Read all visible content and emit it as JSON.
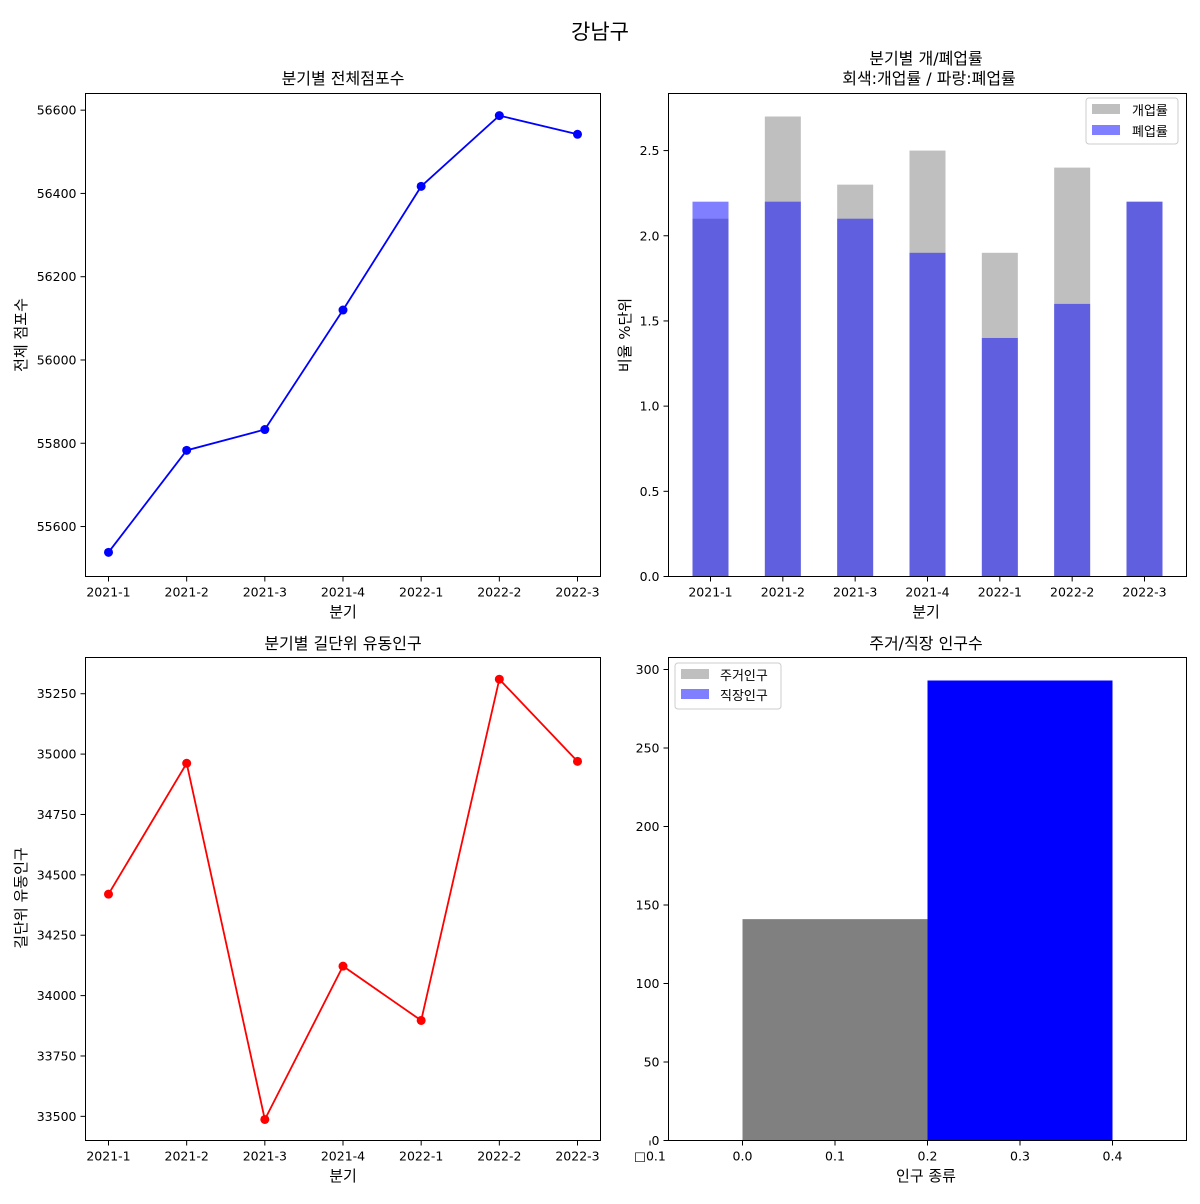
{
  "suptitle": "강남구",
  "chart_data": [
    {
      "type": "line",
      "title": "분기별 전체점포수",
      "xlabel": "분기",
      "ylabel": "전체 점포수",
      "categories": [
        "2021-1",
        "2021-2",
        "2021-3",
        "2021-4",
        "2022-1",
        "2022-2",
        "2022-3"
      ],
      "values": [
        55538,
        55783,
        55833,
        56120,
        56417,
        56587,
        56542
      ],
      "ylim": [
        55480,
        56640
      ],
      "yticks": [
        55600,
        55800,
        56000,
        56200,
        56400,
        56600
      ],
      "color": "#0000ff"
    },
    {
      "type": "bar",
      "title_line1": "분기별 개/폐업률",
      "title_line2": "회색:개업률 / 파랑:폐업률",
      "xlabel": "분기",
      "ylabel": "비율 %단위",
      "categories": [
        "2021-1",
        "2021-2",
        "2021-3",
        "2021-4",
        "2022-1",
        "2022-2",
        "2022-3"
      ],
      "series": [
        {
          "name": "개업률",
          "values": [
            2.1,
            2.7,
            2.3,
            2.5,
            1.9,
            2.4,
            2.2
          ],
          "color": "#808080",
          "alpha": 0.5
        },
        {
          "name": "폐업률",
          "values": [
            2.2,
            2.2,
            2.1,
            1.9,
            1.4,
            1.6,
            2.2
          ],
          "color": "#0000ff",
          "alpha": 0.5
        }
      ],
      "ylim": [
        0,
        2.835
      ],
      "yticks": [
        "0.0",
        "0.5",
        "1.0",
        "1.5",
        "2.0",
        "2.5"
      ],
      "legend": "top-right"
    },
    {
      "type": "line",
      "title": "분기별 길단위 유동인구",
      "xlabel": "분기",
      "ylabel": "길단위 유동인구",
      "categories": [
        "2021-1",
        "2021-2",
        "2021-3",
        "2021-4",
        "2022-1",
        "2022-2",
        "2022-3"
      ],
      "values": [
        34420,
        34962,
        33487,
        34122,
        33897,
        35310,
        34970
      ],
      "ylim": [
        33400,
        35400
      ],
      "yticks": [
        33500,
        33750,
        34000,
        34250,
        34500,
        34750,
        35000,
        35250
      ],
      "color": "#ff0000"
    },
    {
      "type": "bar",
      "title": "주거/직장 인구수",
      "xlabel": "인구 종류",
      "series": [
        {
          "name": "주거인구",
          "x": 0.1,
          "value": 141,
          "color": "#808080",
          "alpha": 0.5
        },
        {
          "name": "직장인구",
          "x": 0.3,
          "value": 293,
          "color": "#0000ff",
          "alpha": 0.5
        }
      ],
      "bar_width": 0.2,
      "xlim": [
        -0.08,
        0.48
      ],
      "ylim": [
        0,
        307.65
      ],
      "xticks": [
        "□0.1",
        "0.0",
        "0.1",
        "0.2",
        "0.3",
        "0.4"
      ],
      "xtick_values": [
        -0.1,
        0.0,
        0.1,
        0.2,
        0.3,
        0.4
      ],
      "yticks": [
        "0",
        "50",
        "100",
        "150",
        "200",
        "250",
        "300"
      ],
      "ytick_values": [
        0,
        50,
        100,
        150,
        200,
        250,
        300
      ],
      "legend": "top-left"
    }
  ]
}
